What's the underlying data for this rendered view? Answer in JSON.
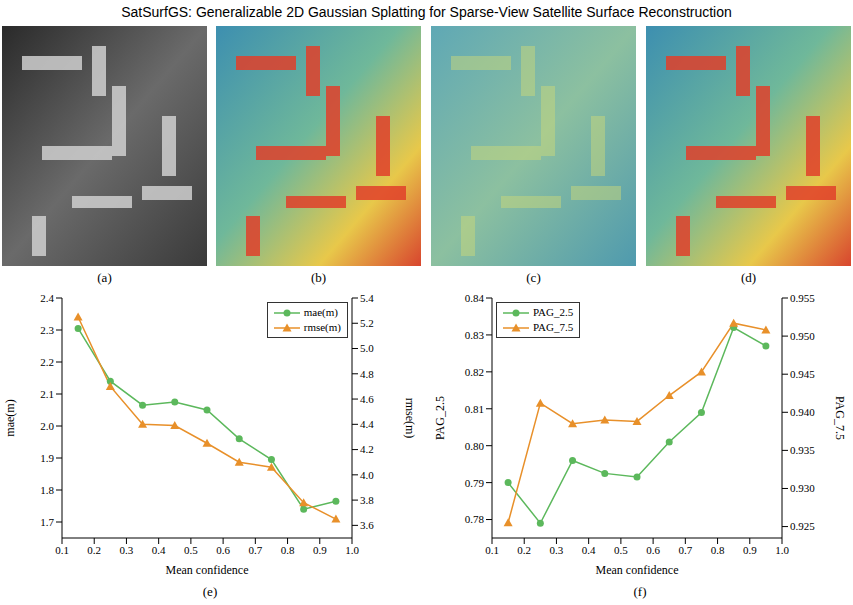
{
  "header": {
    "title": "SatSurfGS: Generalizable 2D Gaussian Splatting for Sparse-View Satellite Surface Reconstruction"
  },
  "panels": [
    "(a)",
    "(b)",
    "(c)",
    "(d)",
    "(e)",
    "(f)"
  ],
  "chart_data": [
    {
      "type": "line",
      "x": [
        0.15,
        0.25,
        0.35,
        0.45,
        0.55,
        0.65,
        0.75,
        0.85,
        0.95
      ],
      "xlim": [
        0.1,
        1.0
      ],
      "xticks": [
        0.1,
        0.2,
        0.3,
        0.4,
        0.5,
        0.6,
        0.7,
        0.8,
        0.9,
        {
          "value": 1.0,
          "label": "1.0"
        }
      ],
      "x_label": "Mean confidence",
      "y_label": "mae(m)",
      "y2_label": "rmse(m)",
      "ylim": [
        1.65,
        2.4
      ],
      "yticks": [
        1.7,
        1.8,
        1.9,
        {
          "value": 2.0,
          "label": "2.0"
        },
        2.1,
        2.2,
        2.3,
        2.4
      ],
      "y2lim": [
        3.5,
        5.4
      ],
      "y2ticks": [
        3.6,
        3.8,
        {
          "value": 4.0,
          "label": "4.0"
        },
        4.2,
        4.4,
        4.6,
        4.8,
        {
          "value": 5.0,
          "label": "5.0"
        },
        5.2,
        5.4
      ],
      "legend": "upper right",
      "series": [
        {
          "name": "mae(m)",
          "color": "#5cb85c",
          "marker": "circle",
          "values": [
            2.305,
            2.14,
            2.065,
            2.075,
            2.05,
            1.96,
            1.895,
            1.74,
            1.765
          ]
        },
        {
          "name": "rmse(m)",
          "color": "#e8902a",
          "marker": "triangle",
          "axis": "y2",
          "values": [
            5.25,
            4.7,
            4.4,
            4.39,
            4.25,
            4.1,
            4.06,
            3.78,
            3.65
          ]
        }
      ]
    },
    {
      "type": "line",
      "x": [
        0.15,
        0.25,
        0.35,
        0.45,
        0.55,
        0.65,
        0.75,
        0.85,
        0.95
      ],
      "xlim": [
        0.1,
        1.0
      ],
      "xticks": [
        0.1,
        0.2,
        0.3,
        0.4,
        0.5,
        0.6,
        0.7,
        0.8,
        0.9,
        {
          "value": 1.0,
          "label": "1.0"
        }
      ],
      "x_label": "Mean confidence",
      "y_label": "PAG_2.5",
      "y2_label": "PAG_7.5",
      "ylim": [
        0.775,
        0.84
      ],
      "yticks": [
        0.78,
        0.79,
        {
          "value": 0.8,
          "label": "0.80"
        },
        0.81,
        0.82,
        0.83,
        0.84
      ],
      "y2lim": [
        0.9235,
        0.955
      ],
      "y2ticks": [
        0.925,
        {
          "value": 0.93,
          "label": "0.930"
        },
        0.935,
        {
          "value": 0.94,
          "label": "0.940"
        },
        0.945,
        {
          "value": 0.95,
          "label": "0.950"
        },
        0.955
      ],
      "legend": "upper left",
      "series": [
        {
          "name": "PAG_2.5",
          "color": "#5cb85c",
          "marker": "circle",
          "values": [
            0.79,
            0.779,
            0.796,
            0.7925,
            0.7915,
            0.801,
            0.809,
            0.832,
            0.827
          ]
        },
        {
          "name": "PAG_7.5",
          "color": "#e8902a",
          "marker": "triangle",
          "axis": "y2",
          "values": [
            0.9255,
            0.9412,
            0.9385,
            0.939,
            0.9388,
            0.9422,
            0.9453,
            0.9517,
            0.9508
          ]
        }
      ]
    }
  ]
}
